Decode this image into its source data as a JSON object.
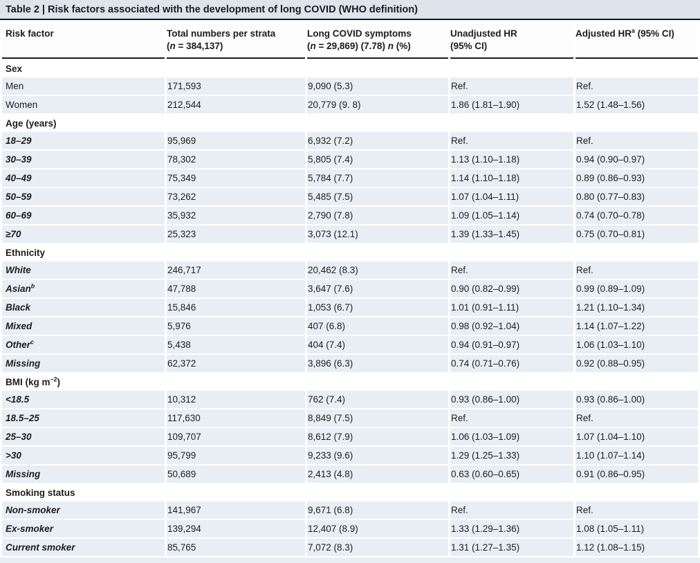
{
  "colors": {
    "title-bg": "#dde4ec",
    "stripe": "#e9eef5",
    "rule": "#1a1a1a",
    "text": "#1c1c1c"
  },
  "table": {
    "title": "Table 2 | Risk factors associated with the development of long COVID (WHO definition)",
    "columns": [
      {
        "segments": [
          {
            "t": "Risk factor"
          }
        ]
      },
      {
        "segments": [
          {
            "t": "Total numbers per strata"
          },
          {
            "br": true
          },
          {
            "t": "("
          },
          {
            "t": "n",
            "i": true
          },
          {
            "t": " = 384,137)"
          }
        ]
      },
      {
        "segments": [
          {
            "t": "Long COVID symptoms"
          },
          {
            "br": true
          },
          {
            "t": "("
          },
          {
            "t": "n",
            "i": true
          },
          {
            "t": " = 29,869) (7.78) "
          },
          {
            "t": "n",
            "i": true
          },
          {
            "t": " (%)"
          }
        ]
      },
      {
        "segments": [
          {
            "t": "Unadjusted HR"
          },
          {
            "br": true
          },
          {
            "t": "(95% CI)"
          }
        ]
      },
      {
        "segments": [
          {
            "t": "Adjusted HR"
          },
          {
            "t": "a",
            "sup": true
          },
          {
            "t": " (95% CI)"
          }
        ]
      }
    ],
    "sections": [
      {
        "header": [
          {
            "t": "Sex"
          }
        ],
        "rows": [
          {
            "label": [
              {
                "t": "Men"
              }
            ],
            "em": false,
            "cells": [
              "171,593",
              "9,090 (5.3)",
              "Ref.",
              "Ref."
            ]
          },
          {
            "label": [
              {
                "t": "Women"
              }
            ],
            "em": false,
            "cells": [
              "212,544",
              "20,779 (9. 8)",
              "1.86 (1.81–1.90)",
              "1.52 (1.48–1.56)"
            ]
          }
        ]
      },
      {
        "header": [
          {
            "t": "Age (years)"
          }
        ],
        "rows": [
          {
            "label": [
              {
                "t": "18–29"
              }
            ],
            "em": true,
            "cells": [
              "95,969",
              "6,932 (7.2)",
              "Ref.",
              "Ref."
            ]
          },
          {
            "label": [
              {
                "t": "30–39"
              }
            ],
            "em": true,
            "cells": [
              "78,302",
              "5,805 (7.4)",
              "1.13 (1.10–1.18)",
              "0.94 (0.90–0.97)"
            ]
          },
          {
            "label": [
              {
                "t": "40–49"
              }
            ],
            "em": true,
            "cells": [
              "75,349",
              "5,784 (7.7)",
              "1.14 (1.10–1.18)",
              "0.89 (0.86–0.93)"
            ]
          },
          {
            "label": [
              {
                "t": "50–59"
              }
            ],
            "em": true,
            "cells": [
              "73,262",
              "5,485 (7.5)",
              "1.07 (1.04–1.11)",
              "0.80 (0.77–0.83)"
            ]
          },
          {
            "label": [
              {
                "t": "60–69"
              }
            ],
            "em": true,
            "cells": [
              "35,932",
              "2,790 (7.8)",
              "1.09 (1.05–1.14)",
              "0.74 (0.70–0.78)"
            ]
          },
          {
            "label": [
              {
                "t": "≥70"
              }
            ],
            "em": true,
            "cells": [
              "25,323",
              "3,073 (12.1)",
              "1.39 (1.33–1.45)",
              "0.75 (0.70–0.81)"
            ]
          }
        ]
      },
      {
        "header": [
          {
            "t": "Ethnicity"
          }
        ],
        "rows": [
          {
            "label": [
              {
                "t": "White"
              }
            ],
            "em": true,
            "cells": [
              "246,717",
              "20,462 (8.3)",
              "Ref.",
              "Ref."
            ]
          },
          {
            "label": [
              {
                "t": "Asian"
              },
              {
                "t": "b",
                "sup": true
              }
            ],
            "em": true,
            "cells": [
              "47,788",
              "3,647 (7.6)",
              "0.90 (0.82–0.99)",
              "0.99 (0.89–1.09)"
            ]
          },
          {
            "label": [
              {
                "t": "Black"
              }
            ],
            "em": true,
            "cells": [
              "15,846",
              "1,053 (6.7)",
              "1.01 (0.91–1.11)",
              "1.21 (1.10–1.34)"
            ]
          },
          {
            "label": [
              {
                "t": "Mixed"
              }
            ],
            "em": true,
            "cells": [
              "5,976",
              "407 (6.8)",
              "0.98 (0.92–1.04)",
              "1.14 (1.07–1.22)"
            ]
          },
          {
            "label": [
              {
                "t": "Other"
              },
              {
                "t": "c",
                "sup": true
              }
            ],
            "em": true,
            "cells": [
              "5,438",
              "404 (7.4)",
              "0.94 (0.91–0.97)",
              "1.06 (1.03–1.10)"
            ]
          },
          {
            "label": [
              {
                "t": "Missing"
              }
            ],
            "em": true,
            "cells": [
              "62,372",
              "3,896 (6.3)",
              "0.74 (0.71–0.76)",
              "0.92 (0.88–0.95)"
            ]
          }
        ]
      },
      {
        "header": [
          {
            "t": "BMI (kg m"
          },
          {
            "t": "−2",
            "sup": true
          },
          {
            "t": ")"
          }
        ],
        "rows": [
          {
            "label": [
              {
                "t": "<18.5"
              }
            ],
            "em": true,
            "cells": [
              "10,312",
              "762 (7.4)",
              "0.93 (0.86–1.00)",
              "0.93 (0.86–1.00)"
            ]
          },
          {
            "label": [
              {
                "t": "18.5–25"
              }
            ],
            "em": true,
            "cells": [
              "117,630",
              "8,849 (7.5)",
              "Ref.",
              "Ref."
            ]
          },
          {
            "label": [
              {
                "t": "25–30"
              }
            ],
            "em": true,
            "cells": [
              "109,707",
              "8,612 (7.9)",
              "1.06 (1.03–1.09)",
              "1.07 (1.04–1.10)"
            ]
          },
          {
            "label": [
              {
                "t": ">30"
              }
            ],
            "em": true,
            "cells": [
              "95,799",
              "9,233 (9.6)",
              "1.29 (1.25–1.33)",
              "1.10 (1.07–1.14)"
            ]
          },
          {
            "label": [
              {
                "t": "Missing"
              }
            ],
            "em": true,
            "cells": [
              "50,689",
              "2,413 (4.8)",
              "0.63 (0.60–0.65)",
              "0.91 (0.86–0.95)"
            ]
          }
        ]
      },
      {
        "header": [
          {
            "t": "Smoking status"
          }
        ],
        "rows": [
          {
            "label": [
              {
                "t": "Non-smoker"
              }
            ],
            "em": true,
            "cells": [
              "141,967",
              "9,671 (6.8)",
              "Ref.",
              "Ref."
            ]
          },
          {
            "label": [
              {
                "t": "Ex-smoker"
              }
            ],
            "em": true,
            "cells": [
              "139,294",
              "12,407 (8.9)",
              "1.33 (1.29–1.36)",
              "1.08 (1.05–1.11)"
            ]
          },
          {
            "label": [
              {
                "t": "Current smoker"
              }
            ],
            "em": true,
            "cells": [
              "85,765",
              "7,072 (8.3)",
              "1.31 (1.27–1.35)",
              "1.12 (1.08–1.15)"
            ]
          }
        ]
      }
    ]
  }
}
